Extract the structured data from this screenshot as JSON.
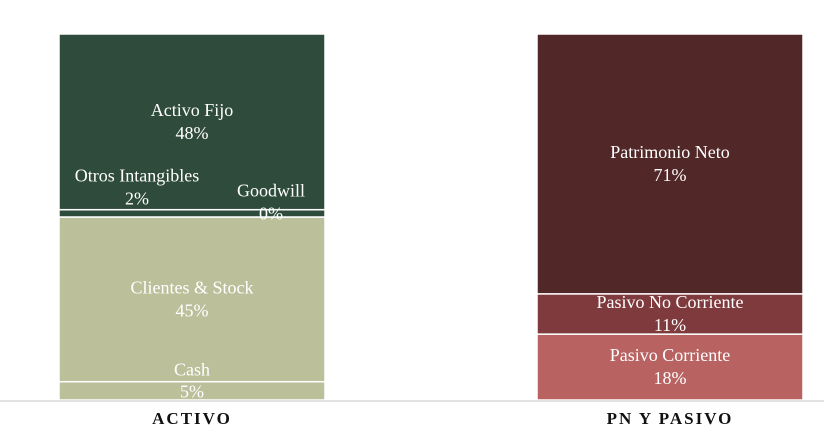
{
  "chart_data": {
    "type": "bar",
    "stacked": true,
    "categories": [
      "ACTIVO",
      "PN Y PASIVO"
    ],
    "ylim": [
      0,
      100
    ],
    "grid": false,
    "series": [
      {
        "bar": 0,
        "segments": [
          {
            "name": "Cash",
            "value": 5,
            "label": "5%",
            "color": "#bbc09b"
          },
          {
            "name": "Clientes & Stock",
            "value": 45,
            "label": "45%",
            "color": "#bbc09b"
          },
          {
            "name": "Goodwill",
            "value": 0,
            "label": "0%",
            "color": "#2f4b3c"
          },
          {
            "name": "Otros Intangibles",
            "value": 2,
            "label": "2%",
            "color": "#2f4b3c"
          },
          {
            "name": "Activo Fijo",
            "value": 48,
            "label": "48%",
            "color": "#2f4b3c"
          }
        ]
      },
      {
        "bar": 1,
        "segments": [
          {
            "name": "Pasivo Corriente",
            "value": 18,
            "label": "18%",
            "color": "#b86361"
          },
          {
            "name": "Pasivo No Corriente",
            "value": 11,
            "label": "11%",
            "color": "#7e3a3c"
          },
          {
            "name": "Patrimonio Neto",
            "value": 71,
            "label": "71%",
            "color": "#512728"
          }
        ]
      }
    ]
  }
}
